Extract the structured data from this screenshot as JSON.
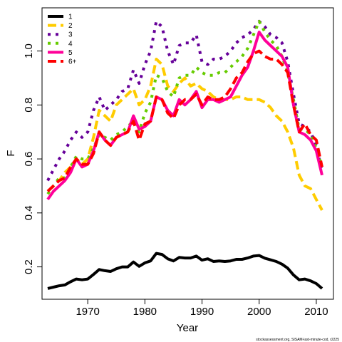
{
  "chart_data": {
    "type": "line",
    "title": "",
    "xlabel": "Year",
    "ylabel": "F",
    "xlim": [
      1962,
      2013
    ],
    "ylim": [
      0.08,
      1.16
    ],
    "xticks": [
      1970,
      1980,
      1990,
      2000,
      2010
    ],
    "yticks": [
      0.2,
      0.4,
      0.6,
      0.8,
      1.0
    ],
    "ytick_labels": [
      "0.2",
      "0.4",
      "0.6",
      "0.8",
      "1.0"
    ],
    "grid": false,
    "legend_position": "top-left",
    "caption": "stockassessment.org, SISAM-last-minute-cod, r2225",
    "x": [
      1963,
      1964,
      1965,
      1966,
      1967,
      1968,
      1969,
      1970,
      1971,
      1972,
      1973,
      1974,
      1975,
      1976,
      1977,
      1978,
      1979,
      1980,
      1981,
      1982,
      1983,
      1984,
      1985,
      1986,
      1987,
      1988,
      1989,
      1990,
      1991,
      1992,
      1993,
      1994,
      1995,
      1996,
      1997,
      1998,
      1999,
      2000,
      2001,
      2002,
      2003,
      2004,
      2005,
      2006,
      2007,
      2008,
      2009,
      2010,
      2011
    ],
    "series": [
      {
        "name": "1",
        "color": "#000000",
        "dash": "solid",
        "values": [
          0.12,
          0.125,
          0.13,
          0.133,
          0.145,
          0.155,
          0.152,
          0.155,
          0.172,
          0.19,
          0.186,
          0.183,
          0.193,
          0.2,
          0.2,
          0.218,
          0.202,
          0.215,
          0.222,
          0.25,
          0.246,
          0.23,
          0.222,
          0.235,
          0.233,
          0.233,
          0.24,
          0.225,
          0.23,
          0.22,
          0.222,
          0.22,
          0.222,
          0.228,
          0.228,
          0.233,
          0.24,
          0.242,
          0.232,
          0.226,
          0.22,
          0.21,
          0.195,
          0.17,
          0.152,
          0.155,
          0.148,
          0.138,
          0.12
        ]
      },
      {
        "name": "2",
        "color": "#ffcc00",
        "dash": "dashed",
        "values": [
          0.48,
          0.5,
          0.52,
          0.55,
          0.57,
          0.6,
          0.58,
          0.6,
          0.68,
          0.78,
          0.76,
          0.74,
          0.8,
          0.82,
          0.84,
          0.86,
          0.8,
          0.82,
          0.87,
          0.97,
          0.95,
          0.87,
          0.85,
          0.88,
          0.9,
          0.87,
          0.88,
          0.86,
          0.85,
          0.83,
          0.82,
          0.82,
          0.82,
          0.83,
          0.83,
          0.82,
          0.82,
          0.82,
          0.81,
          0.79,
          0.76,
          0.74,
          0.7,
          0.64,
          0.54,
          0.5,
          0.49,
          0.45,
          0.41
        ]
      },
      {
        "name": "3",
        "color": "#660099",
        "dash": "dotted",
        "values": [
          0.52,
          0.56,
          0.6,
          0.63,
          0.67,
          0.7,
          0.68,
          0.7,
          0.78,
          0.83,
          0.78,
          0.8,
          0.82,
          0.85,
          0.86,
          0.93,
          0.88,
          0.95,
          1.0,
          1.11,
          1.09,
          1.0,
          0.95,
          1.02,
          1.03,
          1.03,
          1.06,
          0.96,
          0.95,
          0.97,
          0.97,
          0.98,
          1.0,
          1.03,
          1.05,
          1.06,
          1.08,
          1.11,
          1.09,
          1.06,
          1.05,
          1.03,
          0.96,
          0.84,
          0.73,
          0.72,
          0.7,
          0.65,
          0.55
        ]
      },
      {
        "name": "4",
        "color": "#66cc00",
        "dash": "dotted",
        "values": [
          0.47,
          0.5,
          0.53,
          0.53,
          0.57,
          0.61,
          0.6,
          0.6,
          0.64,
          0.69,
          0.68,
          0.67,
          0.69,
          0.7,
          0.72,
          0.74,
          0.7,
          0.77,
          0.81,
          0.91,
          0.9,
          0.85,
          0.83,
          0.9,
          0.91,
          0.91,
          0.94,
          0.92,
          0.91,
          0.91,
          0.92,
          0.92,
          0.94,
          0.96,
          0.98,
          1.01,
          1.06,
          1.11,
          1.07,
          1.04,
          1.02,
          0.98,
          0.92,
          0.82,
          0.71,
          0.71,
          0.69,
          0.64,
          0.57
        ]
      },
      {
        "name": "5",
        "color": "#ff0099",
        "dash": "solid",
        "values": [
          0.45,
          0.48,
          0.5,
          0.52,
          0.55,
          0.6,
          0.57,
          0.58,
          0.63,
          0.7,
          0.67,
          0.65,
          0.68,
          0.69,
          0.7,
          0.76,
          0.71,
          0.72,
          0.74,
          0.83,
          0.82,
          0.78,
          0.76,
          0.82,
          0.8,
          0.82,
          0.85,
          0.79,
          0.82,
          0.82,
          0.81,
          0.82,
          0.83,
          0.87,
          0.91,
          0.94,
          1.0,
          1.07,
          1.04,
          1.02,
          1.0,
          0.98,
          0.94,
          0.8,
          0.7,
          0.69,
          0.67,
          0.63,
          0.54
        ]
      },
      {
        "name": "6+",
        "color": "#ff0000",
        "dash": "dashed",
        "values": [
          0.48,
          0.5,
          0.52,
          0.53,
          0.57,
          0.6,
          0.58,
          0.58,
          0.62,
          0.7,
          0.67,
          0.65,
          0.68,
          0.69,
          0.7,
          0.74,
          0.67,
          0.73,
          0.74,
          0.83,
          0.82,
          0.77,
          0.75,
          0.8,
          0.82,
          0.82,
          0.84,
          0.8,
          0.83,
          0.82,
          0.82,
          0.83,
          0.86,
          0.9,
          0.92,
          0.96,
          0.99,
          1.0,
          0.98,
          0.97,
          0.97,
          0.95,
          0.92,
          0.8,
          0.7,
          0.73,
          0.69,
          0.67,
          0.57
        ]
      }
    ]
  }
}
